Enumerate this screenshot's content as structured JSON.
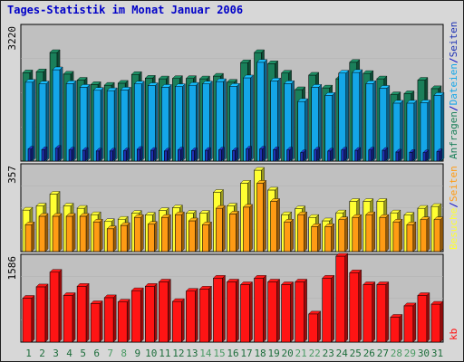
{
  "title": "Tages-Statistik im Monat Januar 2006",
  "colors": {
    "background": "#d7d7d7",
    "panel": "#c0c0c0",
    "title": "#0000c8",
    "anfragen": "#1a7f5a",
    "dateien": "#14a6e8",
    "seiten_top": "#1e32b4",
    "besuche": "#ffff32",
    "seiten_mid": "#ff9b14",
    "kb": "#ff1414",
    "weekday_label": "#1e6e3c",
    "weekend_label": "#4b9b64"
  },
  "chart_data": [
    {
      "type": "bar",
      "panel": "top",
      "ymax": 3220,
      "ymax_label": "3220",
      "legend": [
        {
          "text": "Anfragen",
          "color": "#1a7f5a"
        },
        {
          "text": "/",
          "color": "#0000c8"
        },
        {
          "text": "Dateien",
          "color": "#14a6e8"
        },
        {
          "text": "/",
          "color": "#0000c8"
        },
        {
          "text": "Seiten",
          "color": "#1e32b4"
        }
      ],
      "categories": [
        "1",
        "2",
        "3",
        "4",
        "5",
        "6",
        "7",
        "8",
        "9",
        "10",
        "11",
        "12",
        "13",
        "14",
        "15",
        "16",
        "17",
        "18",
        "19",
        "20",
        "21",
        "22",
        "23",
        "24",
        "25",
        "26",
        "27",
        "28",
        "29",
        "30",
        "31"
      ],
      "series": [
        {
          "name": "Anfragen",
          "color": "#1a7f5a",
          "values": [
            2620,
            2650,
            3220,
            2580,
            2400,
            2270,
            2250,
            2310,
            2570,
            2460,
            2440,
            2450,
            2450,
            2440,
            2520,
            2340,
            2920,
            3220,
            2890,
            2610,
            2120,
            2550,
            2170,
            2440,
            2930,
            2600,
            2440,
            1970,
            2000,
            2400,
            2150
          ]
        },
        {
          "name": "Dateien",
          "color": "#14a6e8",
          "values": [
            2340,
            2290,
            2710,
            2300,
            2190,
            2100,
            2090,
            2110,
            2290,
            2240,
            2190,
            2210,
            2250,
            2290,
            2360,
            2220,
            2470,
            2930,
            2380,
            2300,
            1770,
            2190,
            1950,
            2610,
            2630,
            2300,
            2160,
            1720,
            1720,
            1730,
            1950
          ]
        },
        {
          "name": "Seiten",
          "color": "#1e32b4",
          "values": [
            357,
            340,
            380,
            330,
            320,
            300,
            300,
            305,
            350,
            320,
            300,
            330,
            310,
            320,
            330,
            310,
            360,
            357,
            340,
            330,
            250,
            330,
            300,
            330,
            320,
            330,
            320,
            270,
            260,
            250,
            280
          ]
        }
      ]
    },
    {
      "type": "bar",
      "panel": "middle",
      "ymax": 357,
      "ymax_label": "357",
      "legend": [
        {
          "text": "Besuche",
          "color": "#ffff32"
        },
        {
          "text": "/",
          "color": "#0000c8"
        },
        {
          "text": "Seiten",
          "color": "#ff9b14"
        }
      ],
      "categories": [
        "1",
        "2",
        "3",
        "4",
        "5",
        "6",
        "7",
        "8",
        "9",
        "10",
        "11",
        "12",
        "13",
        "14",
        "15",
        "16",
        "17",
        "18",
        "19",
        "20",
        "21",
        "22",
        "23",
        "24",
        "25",
        "26",
        "27",
        "28",
        "29",
        "30",
        "31"
      ],
      "series": [
        {
          "name": "Besuche",
          "color": "#ffff32",
          "values": [
            182,
            200,
            252,
            200,
            190,
            162,
            132,
            142,
            168,
            160,
            180,
            192,
            168,
            168,
            260,
            200,
            300,
            357,
            270,
            162,
            188,
            150,
            135,
            170,
            220,
            220,
            220,
            170,
            160,
            190,
            198
          ]
        },
        {
          "name": "Seiten",
          "color": "#ff9b14",
          "values": [
            118,
            155,
            155,
            155,
            155,
            130,
            100,
            115,
            150,
            120,
            150,
            162,
            135,
            118,
            190,
            165,
            195,
            300,
            220,
            130,
            162,
            110,
            110,
            140,
            150,
            162,
            150,
            130,
            118,
            140,
            140
          ]
        }
      ]
    },
    {
      "type": "bar",
      "panel": "bottom",
      "ymax": 1586,
      "ymax_label": "1586",
      "legend": [
        {
          "text": "kb",
          "color": "#ff1414"
        }
      ],
      "categories": [
        "1",
        "2",
        "3",
        "4",
        "5",
        "6",
        "7",
        "8",
        "9",
        "10",
        "11",
        "12",
        "13",
        "14",
        "15",
        "16",
        "17",
        "18",
        "19",
        "20",
        "21",
        "22",
        "23",
        "24",
        "25",
        "26",
        "27",
        "28",
        "29",
        "30",
        "31"
      ],
      "series": [
        {
          "name": "kb",
          "color": "#ff1414",
          "values": [
            810,
            1020,
            1290,
            860,
            1030,
            710,
            820,
            740,
            950,
            1030,
            1110,
            750,
            940,
            980,
            1180,
            1110,
            1060,
            1180,
            1110,
            1060,
            1110,
            520,
            1180,
            1586,
            1280,
            1060,
            1060,
            460,
            670,
            860,
            700
          ]
        }
      ]
    }
  ],
  "x_labels": [
    {
      "text": "1",
      "weekend": false
    },
    {
      "text": "2",
      "weekend": false
    },
    {
      "text": "3",
      "weekend": false
    },
    {
      "text": "4",
      "weekend": false
    },
    {
      "text": "5",
      "weekend": false
    },
    {
      "text": "6",
      "weekend": false
    },
    {
      "text": "7",
      "weekend": true
    },
    {
      "text": "8",
      "weekend": true
    },
    {
      "text": "9",
      "weekend": false
    },
    {
      "text": "10",
      "weekend": false
    },
    {
      "text": "11",
      "weekend": false
    },
    {
      "text": "12",
      "weekend": false
    },
    {
      "text": "13",
      "weekend": false
    },
    {
      "text": "14",
      "weekend": true
    },
    {
      "text": "15",
      "weekend": true
    },
    {
      "text": "16",
      "weekend": false
    },
    {
      "text": "17",
      "weekend": false
    },
    {
      "text": "18",
      "weekend": false
    },
    {
      "text": "19",
      "weekend": false
    },
    {
      "text": "20",
      "weekend": false
    },
    {
      "text": "21",
      "weekend": true
    },
    {
      "text": "22",
      "weekend": true
    },
    {
      "text": "23",
      "weekend": false
    },
    {
      "text": "24",
      "weekend": false
    },
    {
      "text": "25",
      "weekend": false
    },
    {
      "text": "26",
      "weekend": false
    },
    {
      "text": "27",
      "weekend": false
    },
    {
      "text": "28",
      "weekend": true
    },
    {
      "text": "29",
      "weekend": true
    },
    {
      "text": "30",
      "weekend": false
    },
    {
      "text": "31",
      "weekend": false
    }
  ]
}
